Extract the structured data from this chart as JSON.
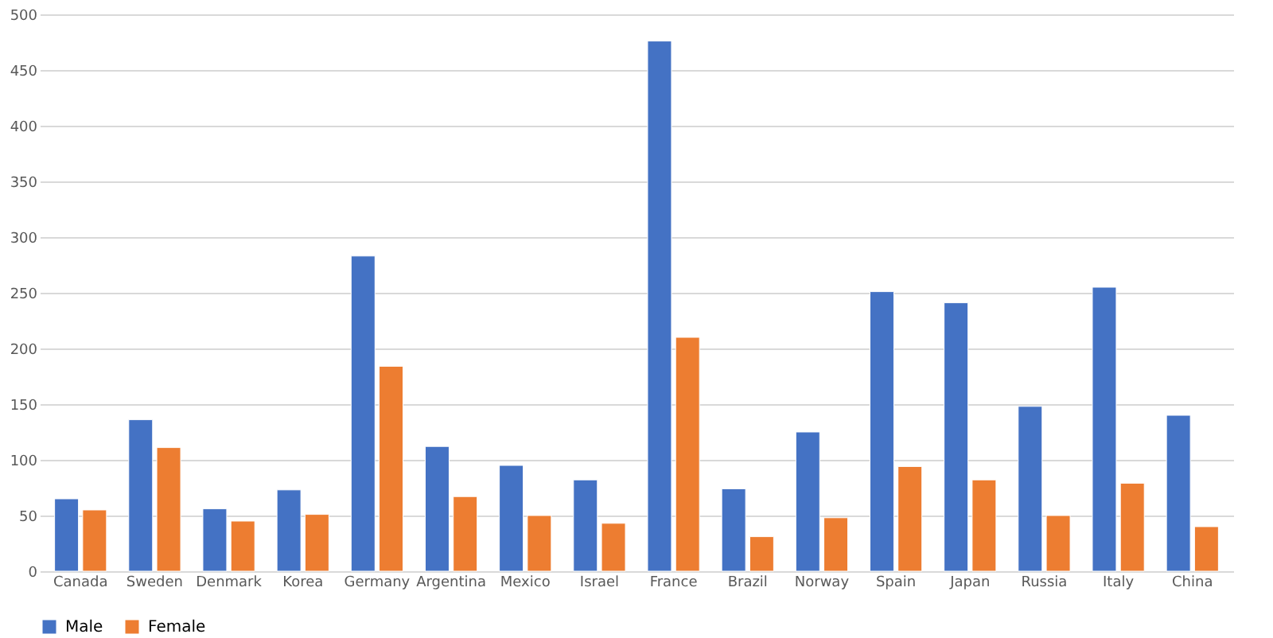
{
  "chart_data": {
    "type": "bar",
    "categories": [
      "Canada",
      "Sweden",
      "Denmark",
      "Korea",
      "Germany",
      "Argentina",
      "Mexico",
      "Israel",
      "France",
      "Brazil",
      "Norway",
      "Spain",
      "Japan",
      "Russia",
      "Italy",
      "China"
    ],
    "series": [
      {
        "name": "Male",
        "color": "#4472c4",
        "values": [
          65,
          136,
          56,
          73,
          283,
          112,
          95,
          82,
          476,
          74,
          125,
          251,
          241,
          148,
          255,
          140
        ]
      },
      {
        "name": "Female",
        "color": "#ed7d31",
        "values": [
          55,
          111,
          45,
          51,
          184,
          67,
          50,
          43,
          210,
          31,
          48,
          94,
          82,
          50,
          79,
          40
        ]
      }
    ],
    "ylim": [
      0,
      500
    ],
    "yticks": [
      0,
      50,
      100,
      150,
      200,
      250,
      300,
      350,
      400,
      450,
      500
    ],
    "grid": "y",
    "legend": "bottom"
  }
}
